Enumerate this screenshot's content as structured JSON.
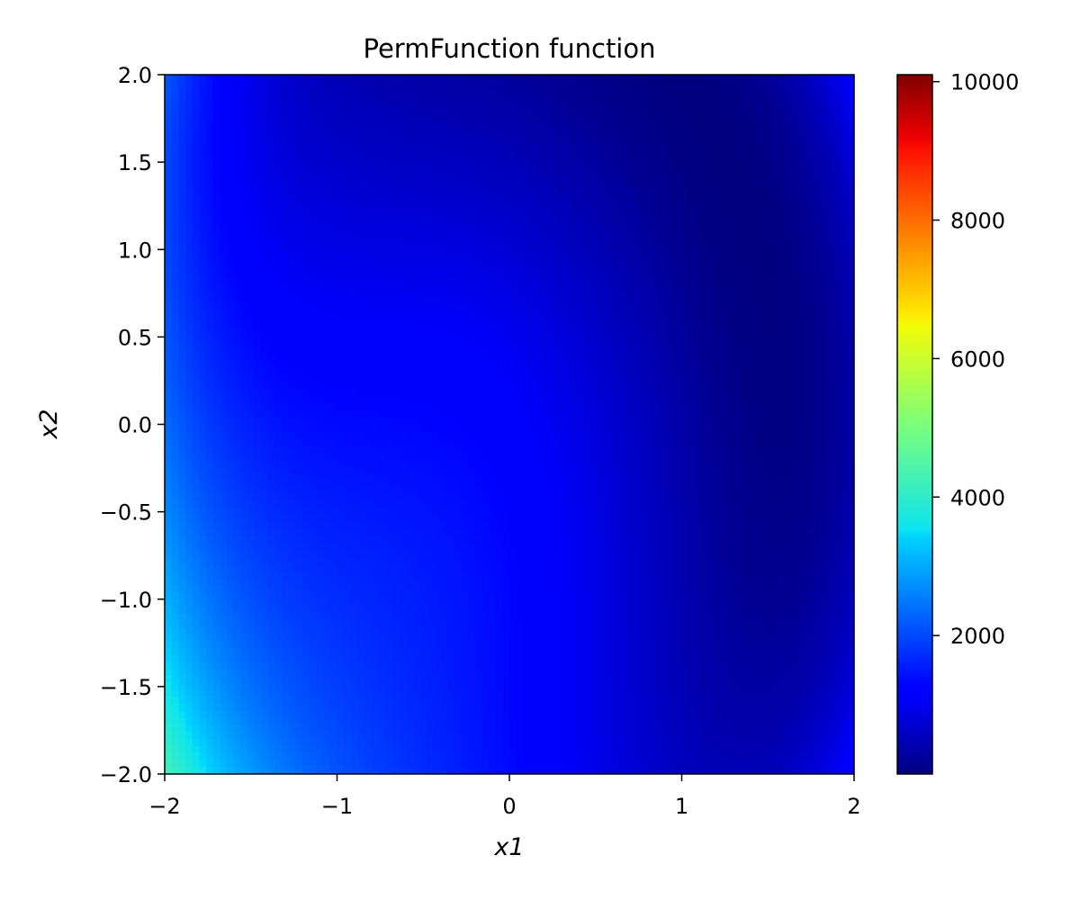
{
  "chart_data": {
    "type": "heatmap",
    "title": "PermFunction function",
    "xlabel": "x1",
    "ylabel": "x2",
    "xlim": [
      -2,
      2
    ],
    "ylim": [
      -2,
      2
    ],
    "x_ticks": [
      -2,
      -1,
      0,
      1,
      2
    ],
    "x_tick_labels": [
      "−2",
      "−1",
      "0",
      "1",
      "2"
    ],
    "y_ticks": [
      -2.0,
      -1.5,
      -1.0,
      -0.5,
      0.0,
      0.5,
      1.0,
      1.5,
      2.0
    ],
    "y_tick_labels": [
      "−2.0",
      "−1.5",
      "−1.0",
      "−0.5",
      "0.0",
      "0.5",
      "1.0",
      "1.5",
      "2.0"
    ],
    "colormap": "jet",
    "grid": false,
    "function": "perm",
    "function_beta": 10,
    "grid_resolution": 100,
    "colorbar": {
      "range": [
        0,
        10100
      ],
      "ticks": [
        2000,
        4000,
        6000,
        8000,
        10000
      ],
      "tick_labels": [
        "2000",
        "4000",
        "6000",
        "8000",
        "10000"
      ]
    },
    "colormap_stops": [
      [
        0.0,
        "#000080"
      ],
      [
        0.11,
        "#0000ff"
      ],
      [
        0.125,
        "#0000ff"
      ],
      [
        0.34,
        "#00d4ff"
      ],
      [
        0.35,
        "#0ce4ef"
      ],
      [
        0.5,
        "#7cff7a"
      ],
      [
        0.64,
        "#f1fc06"
      ],
      [
        0.66,
        "#ffe600"
      ],
      [
        0.89,
        "#ff1300"
      ],
      [
        0.91,
        "#ee0000"
      ],
      [
        1.0,
        "#800000"
      ]
    ]
  }
}
